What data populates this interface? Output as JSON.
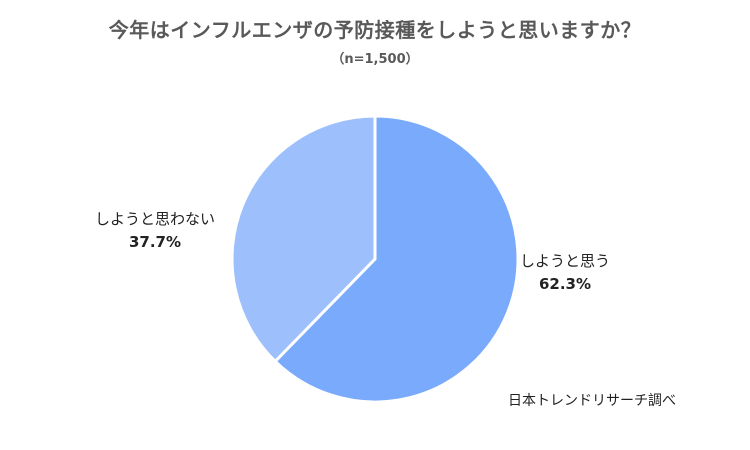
{
  "chart_data": {
    "type": "pie",
    "title": "今年はインフルエンザの予防接種をしようと思いますか？",
    "subtitle": "（n=1,500）",
    "slices": [
      {
        "label": "しようと思う",
        "value": 62.3,
        "value_text": "62.3%",
        "color": "#79aafc"
      },
      {
        "label": "しようと思わない",
        "value": 37.7,
        "value_text": "37.7%",
        "color": "#9dc0fd"
      }
    ],
    "start_angle": "12 o'clock",
    "direction": "clockwise",
    "slice_border_color": "#ffffff",
    "legend": "none"
  },
  "source": "日本トレンドリサーチ調べ"
}
